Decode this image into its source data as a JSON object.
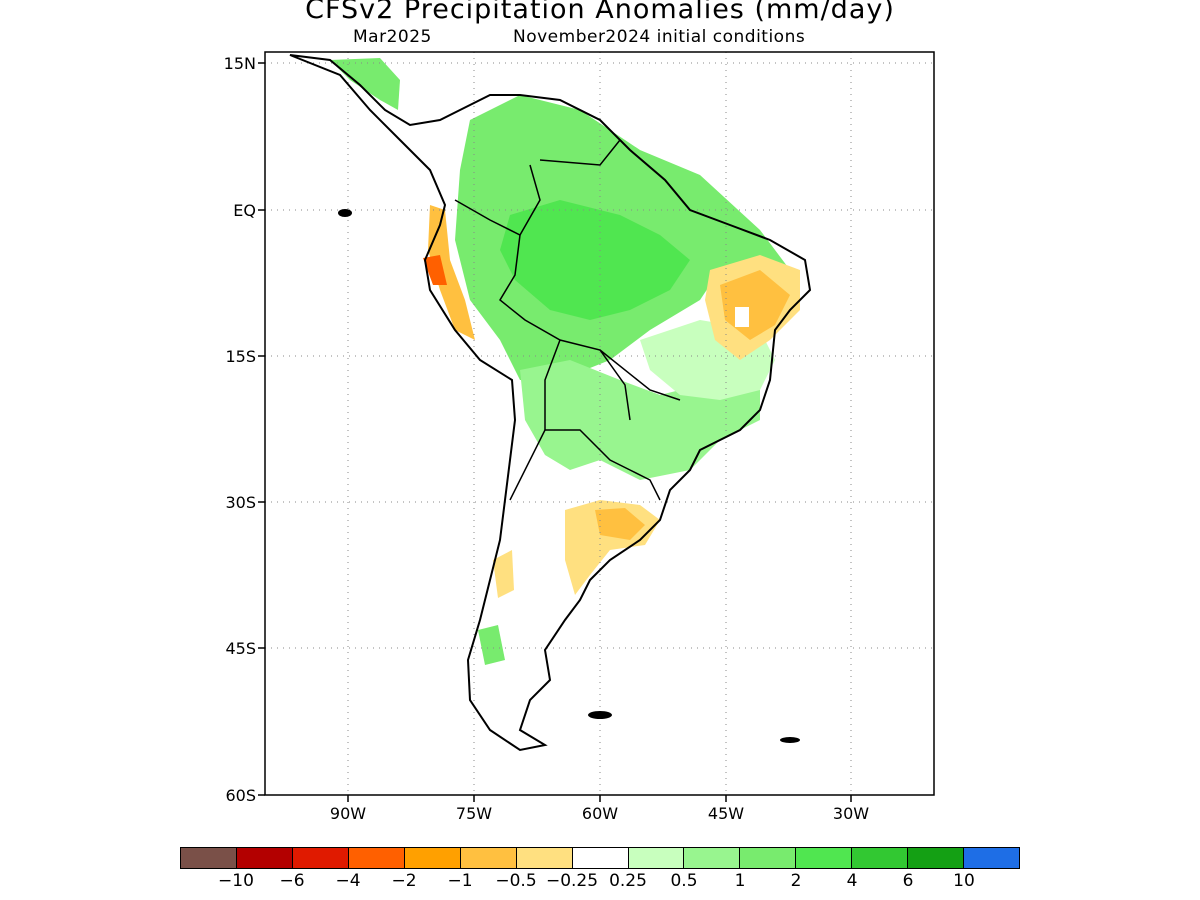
{
  "title": "CFSv2 Precipitation Anomalies (mm/day)",
  "subtitle_left": "Mar2025",
  "subtitle_right": "November2024 initial conditions",
  "axes": {
    "lat_labels": [
      "15N",
      "EQ",
      "15S",
      "30S",
      "45S",
      "60S"
    ],
    "lon_labels": [
      "90W",
      "75W",
      "60W",
      "45W",
      "30W"
    ],
    "lon_range": [
      -100,
      -20
    ],
    "lat_range": [
      -60,
      15
    ],
    "gridlines": "dotted"
  },
  "colorbar": {
    "colors": [
      "#7a5048",
      "#b30000",
      "#e01a00",
      "#ff6000",
      "#ffa000",
      "#ffc040",
      "#ffe080",
      "#ffffff",
      "#c8ffbe",
      "#98f58f",
      "#78eb6e",
      "#50e650",
      "#32c832",
      "#14a014",
      "#1e6ee6"
    ],
    "labels": [
      "−10",
      "−6",
      "−4",
      "−2",
      "−1",
      "−0.5",
      "−0.25",
      "0.25",
      "0.5",
      "1",
      "2",
      "4",
      "6",
      "10"
    ]
  },
  "colors": {
    "coastline": "#000000",
    "grid": "#888888"
  }
}
